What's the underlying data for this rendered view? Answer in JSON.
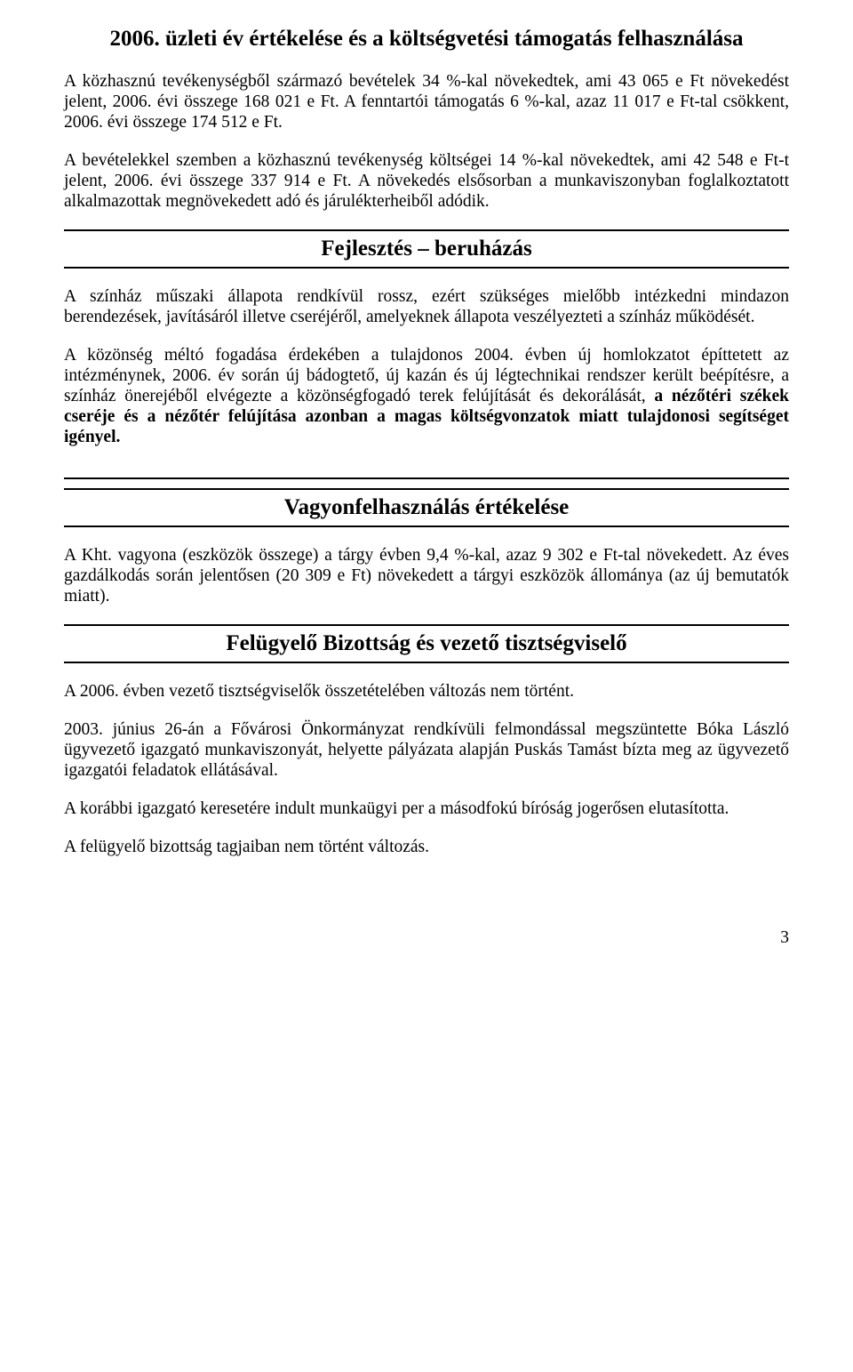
{
  "title": "2006. üzleti év értékelése és a költségvetési támogatás felhasználása",
  "intro": {
    "p1": "A közhasznú tevékenységből származó bevételek 34 %-kal növekedtek, ami 43 065 e Ft növekedést jelent, 2006. évi összege 168 021 e Ft. A fenntartói támogatás 6 %-kal, azaz 11 017 e Ft-tal csökkent, 2006. évi összege 174 512 e Ft.",
    "p2": "A bevételekkel szemben a közhasznú tevékenység költségei 14 %-kal növekedtek, ami 42 548 e Ft-t jelent, 2006. évi összege 337 914 e Ft. A növekedés elsősorban a munkaviszonyban foglalkoztatott alkalmazottak megnövekedett adó és járulékterheiből adódik."
  },
  "fejlesztes": {
    "heading": "Fejlesztés – beruházás",
    "p1": "A színház műszaki állapota rendkívül rossz, ezért szükséges mielőbb intézkedni mindazon berendezések, javításáról illetve cseréjéről, amelyeknek állapota veszélyezteti a színház működését.",
    "p2a": "A közönség méltó fogadása érdekében a tulajdonos 2004. évben új homlokzatot építtetett az intézménynek, 2006. év során új bádogtető, új kazán és új légtechnikai rendszer került beépítésre, a színház önerejéből elvégezte a közönségfogadó terek felújítását és dekorálását, ",
    "p2b": "a nézőtéri székek cseréje és a nézőtér felújítása azonban a magas költségvonzatok miatt tulajdonosi segítséget igényel."
  },
  "vagyon": {
    "heading": "Vagyonfelhasználás értékelése",
    "p1": "A Kht. vagyona (eszközök összege) a tárgy évben 9,4 %-kal, azaz 9 302 e Ft-tal növekedett. Az éves gazdálkodás során jelentősen (20 309 e Ft) növekedett a tárgyi eszközök állománya (az új bemutatók miatt)."
  },
  "felugyelo": {
    "heading": "Felügyelő Bizottság és vezető tisztségviselő",
    "p1": "A 2006. évben vezető tisztségviselők összetételében változás nem történt.",
    "p2": "2003. június 26-án a Fővárosi Önkormányzat rendkívüli felmondással megszüntette Bóka László ügyvezető igazgató munkaviszonyát, helyette pályázata alapján Puskás Tamást bízta meg az ügyvezető igazgatói feladatok ellátásával.",
    "p3": "A korábbi igazgató keresetére indult munkaügyi per a másodfokú bíróság jogerősen elutasította.",
    "p4": "A felügyelő bizottság tagjaiban nem történt változás."
  },
  "page_number": "3"
}
